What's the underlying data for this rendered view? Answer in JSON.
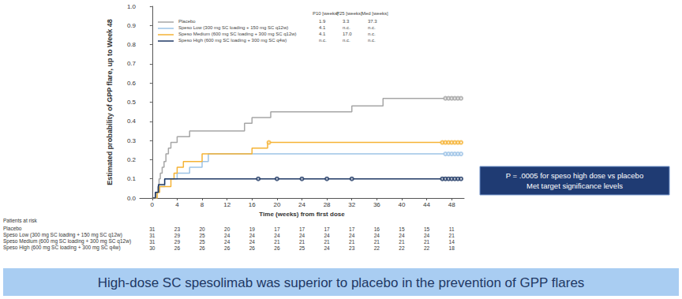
{
  "chart_data": {
    "type": "line",
    "line_style": "step",
    "grid": false,
    "x_label": "Time (weeks) from first dose",
    "y_label": "Estimated probability of GPP flare, up to Week 48",
    "xlim": [
      -2,
      50
    ],
    "xticks": [
      0,
      4,
      8,
      12,
      16,
      20,
      24,
      28,
      32,
      36,
      40,
      44,
      48
    ],
    "ylim": [
      0,
      1
    ],
    "yticks": [
      {
        "value": 0,
        "label": "0.0"
      },
      0.1,
      0.2,
      0.3,
      0.4,
      0.5,
      0.6,
      0.7,
      0.8,
      0.9,
      {
        "value": 1,
        "label": "1.0"
      }
    ],
    "legend_header": [
      "P10 [weeks]",
      "P25 [weeks]",
      "Med [weeks]"
    ],
    "series": [
      {
        "name": "Placebo",
        "color": "#a6a6a6",
        "marker": "circle",
        "x": [
          0,
          0.6,
          0.9,
          1.1,
          1.3,
          1.6,
          1.9,
          2.2,
          2.6,
          3,
          4,
          6,
          14.8,
          16,
          19,
          32,
          37,
          49.5
        ],
        "values": [
          0,
          0.03,
          0.06,
          0.1,
          0.13,
          0.16,
          0.19,
          0.23,
          0.26,
          0.29,
          0.32,
          0.35,
          0.39,
          0.42,
          0.45,
          0.48,
          0.52,
          0.52
        ],
        "censored_x": [
          47,
          47.5,
          48,
          48.5,
          49,
          49.5
        ],
        "stats": [
          "1.9",
          "3.3",
          "37.3"
        ]
      },
      {
        "name": "Speso Low (300 mg SC loading + 150 mg SC q12w)",
        "color": "#9dc3e6",
        "marker": "circle",
        "x": [
          0,
          0.8,
          1.2,
          2,
          4,
          6,
          8,
          9,
          49.5
        ],
        "values": [
          0,
          0.03,
          0.06,
          0.1,
          0.13,
          0.16,
          0.19,
          0.23,
          0.23
        ],
        "censored_x": [
          47,
          47.5,
          48,
          48.5,
          49,
          49.5
        ],
        "stats": [
          "4.1",
          "n.c.",
          "n.c."
        ]
      },
      {
        "name": "Speso Medium (600 mg SC loading + 300 mg SC q12w)",
        "color": "#f5b335",
        "marker": "circle",
        "x": [
          0,
          0.8,
          1.2,
          3,
          3.5,
          4,
          5,
          8,
          16,
          18.5,
          49.5
        ],
        "values": [
          0,
          0.03,
          0.06,
          0.1,
          0.13,
          0.16,
          0.19,
          0.23,
          0.26,
          0.29,
          0.29
        ],
        "censored_x": [
          18.7,
          46.5,
          47,
          47.5,
          48,
          48.5,
          49,
          49.5
        ],
        "stats": [
          "4.1",
          "17.0",
          "n.c."
        ]
      },
      {
        "name": "Speso High (600 mg SC loading + 300 mg SC q4w)",
        "color": "#1f3864",
        "marker": "circle",
        "x": [
          0,
          0.5,
          1,
          2,
          49.5
        ],
        "values": [
          0,
          0.03,
          0.07,
          0.1,
          0.1
        ],
        "censored_x": [
          17,
          20,
          24,
          28,
          32,
          46.5,
          47,
          47.5,
          48,
          48.5,
          49,
          49.5
        ],
        "stats": [
          "n.c.",
          "n.c.",
          "n.c."
        ]
      }
    ],
    "annotation": [
      "P = .0005 for speso high dose vs placebo",
      "Met target significance levels"
    ],
    "caption": "High-dose SC spesolimab was superior to placebo in the prevention of GPP flares",
    "risk_table": {
      "title": "Patients at risk",
      "rows": [
        {
          "label": "Placebo",
          "values": [
            31,
            23,
            20,
            20,
            19,
            17,
            17,
            17,
            17,
            16,
            15,
            15,
            11
          ]
        },
        {
          "label": "Speso Low (300 mg SC loading + 150 mg SC q12w)",
          "values": [
            31,
            29,
            25,
            24,
            24,
            24,
            24,
            24,
            24,
            24,
            24,
            24,
            21
          ]
        },
        {
          "label": "Speso Medium (600 mg SC loading + 300 mg SC q12w)",
          "values": [
            31,
            29,
            25,
            24,
            24,
            21,
            21,
            21,
            21,
            21,
            21,
            21,
            14
          ]
        },
        {
          "label": "Speso High (600 mg SC loading + 300 mg SC q4w)",
          "values": [
            30,
            26,
            26,
            26,
            26,
            26,
            25,
            24,
            23,
            22,
            22,
            22,
            18
          ]
        }
      ]
    }
  }
}
